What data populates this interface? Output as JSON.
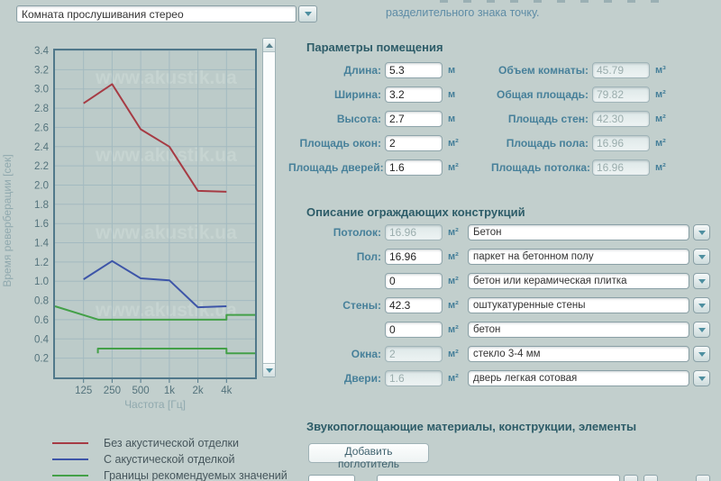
{
  "top": {
    "room_select_value": "Комната прослушивания стерео",
    "message": "разделительного знака точку."
  },
  "colors": {
    "background": "#c2cfcd",
    "plot_background": "#bccbc9",
    "plot_border": "#50788a",
    "grid": "#a3bac0",
    "axis_text": "#54737c",
    "axis_title": "#90a9ae",
    "heading": "#2d5c68",
    "label": "#47809a",
    "message": "#5e8ca6",
    "series_no_treatment": "#a63b44",
    "series_treated": "#3d55a8",
    "series_bounds": "#43a048",
    "watermark": "#c8d5d2"
  },
  "chart_data": {
    "type": "line",
    "title": "",
    "xlabel": "Частота [Гц]",
    "ylabel": "Время реверберации [сек]",
    "watermark": "www.akustik.ua",
    "x_scale": "log2",
    "x_range_hz": [
      62.5,
      8000
    ],
    "ylim": [
      0,
      3.4
    ],
    "y_tick_step": 0.2,
    "y_tick_labels": [
      "0.2",
      "0.4",
      "0.6",
      "0.8",
      "1.0",
      "1.2",
      "1.4",
      "1.6",
      "1.8",
      "2.0",
      "2.2",
      "2.4",
      "2.6",
      "2.8",
      "3.0",
      "3.2",
      "3.4"
    ],
    "x_tick_hz": [
      125,
      250,
      500,
      1000,
      2000,
      4000
    ],
    "x_tick_labels": [
      "125",
      "250",
      "500",
      "1k",
      "2k",
      "4k"
    ],
    "grid": true,
    "legend_position": "below-left",
    "series": [
      {
        "name": "Без акустической отделки",
        "color": "#a63b44",
        "points": [
          [
            125,
            2.85
          ],
          [
            250,
            3.05
          ],
          [
            500,
            2.58
          ],
          [
            1000,
            2.4
          ],
          [
            2000,
            1.94
          ],
          [
            4000,
            1.93
          ]
        ]
      },
      {
        "name": "С акустической отделкой",
        "color": "#3d55a8",
        "points": [
          [
            125,
            1.02
          ],
          [
            250,
            1.21
          ],
          [
            500,
            1.03
          ],
          [
            1000,
            1.01
          ],
          [
            2000,
            0.73
          ],
          [
            4000,
            0.74
          ]
        ]
      },
      {
        "name": "Границы рекомендуемых значений (верхняя)",
        "color": "#43a048",
        "points": [
          [
            62.5,
            0.74
          ],
          [
            180,
            0.6
          ],
          [
            4000,
            0.6
          ],
          [
            4000,
            0.65
          ],
          [
            8000,
            0.65
          ]
        ]
      },
      {
        "name": "Границы рекомендуемых значений (нижняя)",
        "color": "#43a048",
        "points": [
          [
            177,
            0.25
          ],
          [
            177,
            0.3
          ],
          [
            4000,
            0.3
          ],
          [
            4000,
            0.25
          ],
          [
            8000,
            0.25
          ]
        ]
      }
    ]
  },
  "legend": [
    {
      "label": "Без акустической отделки",
      "color": "#a63b44"
    },
    {
      "label": "С акустической отделкой",
      "color": "#3d55a8"
    },
    {
      "label": "Границы рекомендуемых значений",
      "color": "#43a048"
    }
  ],
  "sections": {
    "params_heading": "Параметры помещения",
    "constructions_heading": "Описание ограждающих конструкций",
    "absorbers_heading": "Звукопоглощающие материалы, конструкции, элементы",
    "add_button": "Добавить поглотитель"
  },
  "room_params": {
    "left": [
      {
        "label": "Длина:",
        "value": "5.3",
        "unit": "м",
        "disabled": false
      },
      {
        "label": "Ширина:",
        "value": "3.2",
        "unit": "м",
        "disabled": false
      },
      {
        "label": "Высота:",
        "value": "2.7",
        "unit": "м",
        "disabled": false
      },
      {
        "label": "Площадь окон:",
        "value": "2",
        "unit": "м²",
        "disabled": false
      },
      {
        "label": "Площадь дверей:",
        "value": "1.6",
        "unit": "м²",
        "disabled": false
      }
    ],
    "right": [
      {
        "label": "Объем комнаты:",
        "value": "45.79",
        "unit": "м³",
        "disabled": true
      },
      {
        "label": "Общая площадь:",
        "value": "79.82",
        "unit": "м²",
        "disabled": true
      },
      {
        "label": "Площадь стен:",
        "value": "42.30",
        "unit": "м²",
        "disabled": true
      },
      {
        "label": "Площадь пола:",
        "value": "16.96",
        "unit": "м²",
        "disabled": true
      },
      {
        "label": "Площадь потолка:",
        "value": "16.96",
        "unit": "м²",
        "disabled": true
      }
    ]
  },
  "constructions": {
    "rows": [
      {
        "label": "Потолок:",
        "area": "16.96",
        "unit": "м²",
        "area_disabled": true,
        "material": "Бетон"
      },
      {
        "label": "Пол:",
        "area": "16.96",
        "unit": "м²",
        "area_disabled": false,
        "material": "паркет на бетонном полу"
      },
      {
        "label": "",
        "area": "0",
        "unit": "м²",
        "area_disabled": false,
        "material": "бетон или керамическая плитка"
      },
      {
        "label": "Стены:",
        "area": "42.3",
        "unit": "м²",
        "area_disabled": false,
        "material": "оштукатуренные стены"
      },
      {
        "label": "",
        "area": "0",
        "unit": "м²",
        "area_disabled": false,
        "material": "бетон"
      },
      {
        "label": "Окна:",
        "area": "2",
        "unit": "м²",
        "area_disabled": true,
        "material": "стекло 3-4 мм"
      },
      {
        "label": "Двери:",
        "area": "1.6",
        "unit": "м²",
        "area_disabled": true,
        "material": "дверь легкая сотовая"
      }
    ]
  }
}
